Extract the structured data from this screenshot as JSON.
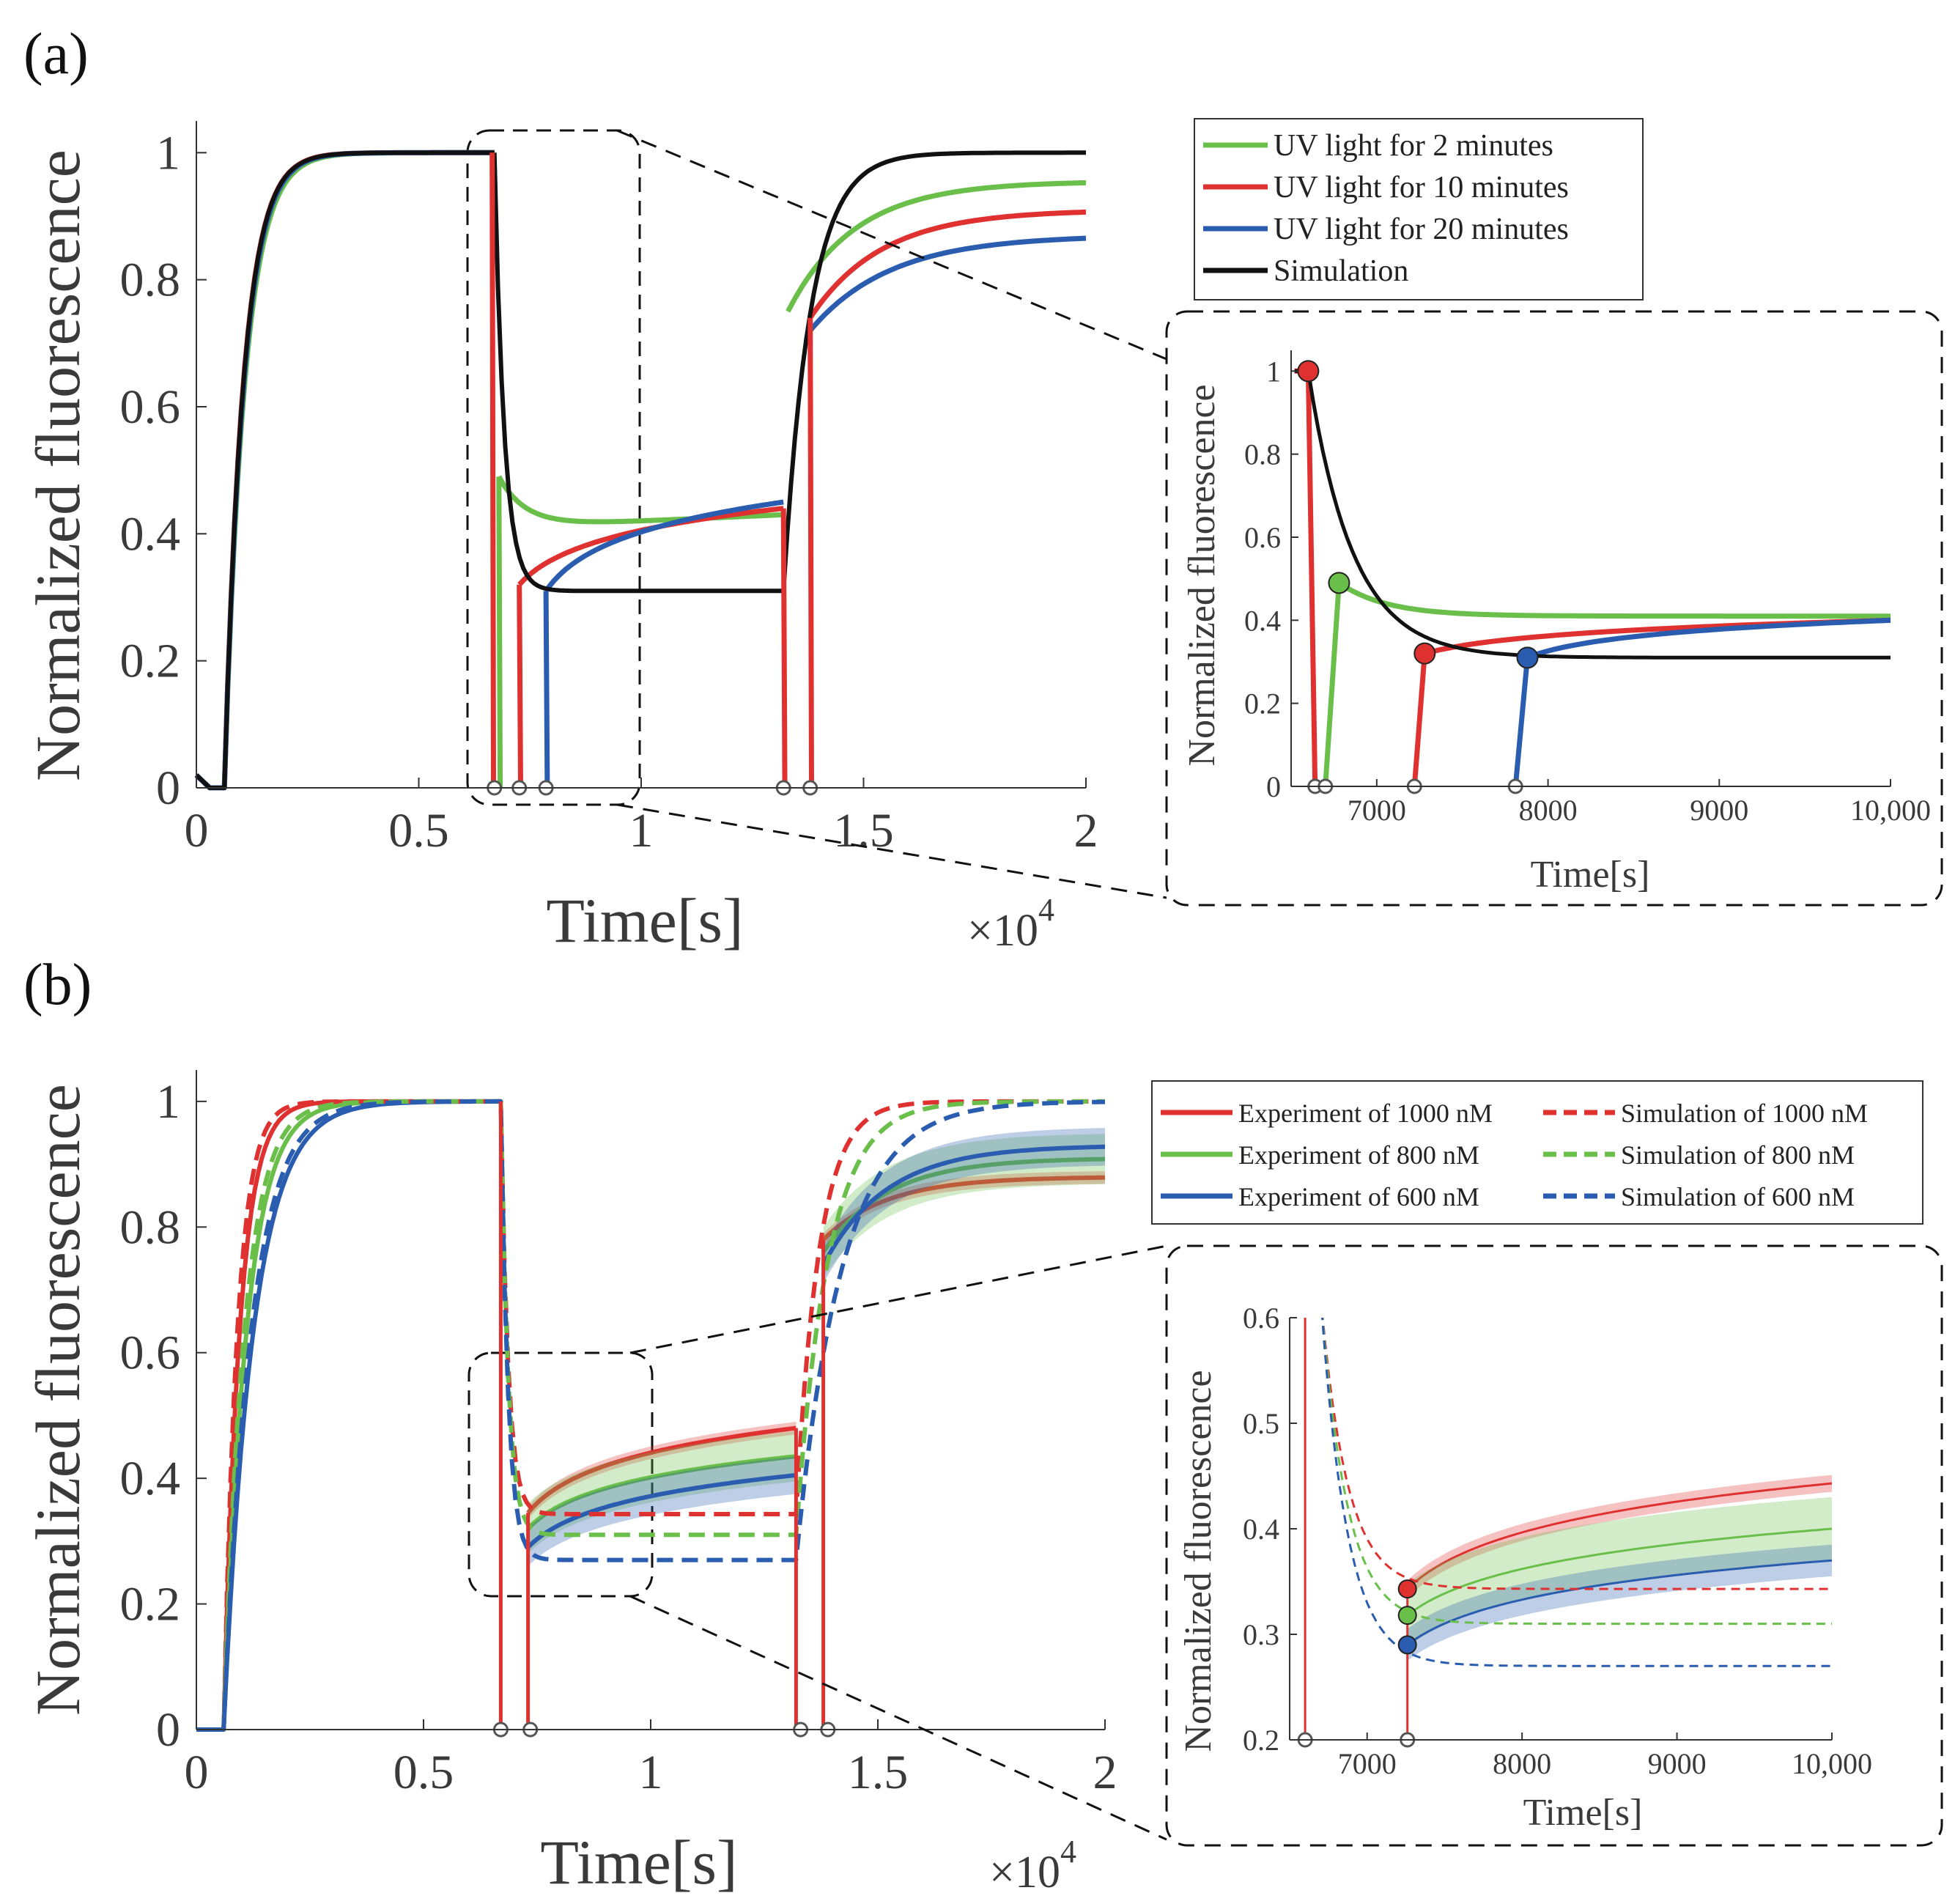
{
  "chart_data": [
    {
      "id": "a-main",
      "panel_label": "(a)",
      "type": "line",
      "xlabel": "Time[s]",
      "ylabel": "Normalized fluorescence",
      "xlim": [
        0,
        20000
      ],
      "ylim": [
        0,
        1.05
      ],
      "x_ticks": [
        0,
        5000,
        10000,
        15000,
        20000
      ],
      "x_tick_labels": [
        "0",
        "0.5",
        "1",
        "1.5",
        "2"
      ],
      "y_ticks": [
        0,
        0.2,
        0.4,
        0.6,
        0.8,
        1
      ],
      "y_tick_labels": [
        "0",
        "0.2",
        "0.4",
        "0.6",
        "0.8",
        "1"
      ],
      "x_multiplier": "×10",
      "x_multiplier_exp": "4",
      "legend_position": "top-right",
      "series": [
        {
          "name": "UV light for 2 minutes",
          "color": "#6abf4b",
          "phases": [
            {
              "x0": 630,
              "x1": 6700,
              "y0": 0,
              "y1": 1.0,
              "tau": 450,
              "dip": 6650
            },
            {
              "x0": 6800,
              "x1": 13200,
              "y0": 0.49,
              "y1": 0.41,
              "tau": 600,
              "trend": 0.02
            },
            {
              "x0": 13300,
              "x1": 20000,
              "y0": 0.75,
              "y1": 0.955,
              "tau": 1500
            }
          ]
        },
        {
          "name": "UV light for 10 minutes",
          "color": "#e03131",
          "phases": [
            {
              "x0": 630,
              "x1": 6700,
              "y0": 0,
              "y1": 1.0,
              "tau": 420,
              "dip": 6650
            },
            {
              "x0": 7260,
              "x1": 13200,
              "y0": 0.32,
              "y1": 0.44,
              "tau": 0,
              "shape": "log"
            },
            {
              "x0": 13800,
              "x1": 20000,
              "y0": 0.74,
              "y1": 0.91,
              "tau": 1600
            }
          ]
        },
        {
          "name": "UV light for 20 minutes",
          "color": "#2a5db0",
          "phases": [
            {
              "x0": 630,
              "x1": 6700,
              "y0": 0,
              "y1": 1.0,
              "tau": 430
            },
            {
              "x0": 7860,
              "x1": 13200,
              "y0": 0.31,
              "y1": 0.45,
              "tau": 0,
              "shape": "log"
            },
            {
              "x0": 13800,
              "x1": 20000,
              "y0": 0.72,
              "y1": 0.87,
              "tau": 1800
            }
          ]
        },
        {
          "name": "Simulation",
          "color": "#111111",
          "phases": [
            {
              "x0": 630,
              "x1": 6700,
              "y0": 0,
              "y1": 1.0,
              "tau": 420
            },
            {
              "x0": 6700,
              "x1": 13200,
              "y0": 1.0,
              "y1": 0.31,
              "tau": 220
            },
            {
              "x0": 13200,
              "x1": 20000,
              "y0": 0.31,
              "y1": 1.0,
              "tau": 600
            }
          ]
        }
      ],
      "drops": [
        {
          "color": "#e03131",
          "x": 6650,
          "from": 1.0
        },
        {
          "color": "#6abf4b",
          "x": 6800,
          "from": 0.49
        },
        {
          "color": "#e03131",
          "x": 7260,
          "from": 0.32
        },
        {
          "color": "#2a5db0",
          "x": 7860,
          "from": 0.31
        },
        {
          "color": "#e03131",
          "x": 13200,
          "from": 0.44
        },
        {
          "color": "#e03131",
          "x": 13800,
          "from": 0.74
        }
      ],
      "markers_x": [
        6700,
        7260,
        7860,
        13200,
        13800
      ],
      "zoom_box": {
        "x": [
          6200,
          10000
        ],
        "y": [
          0,
          1.05
        ]
      }
    },
    {
      "id": "a-inset",
      "type": "line",
      "xlabel": "Time[s]",
      "ylabel": "Normalized fluorescence",
      "xlim": [
        6500,
        10000
      ],
      "ylim": [
        0,
        1.05
      ],
      "x_ticks": [
        7000,
        8000,
        9000,
        10000
      ],
      "x_tick_labels": [
        "7000",
        "8000",
        "9000",
        "10,000"
      ],
      "y_ticks": [
        0,
        0.2,
        0.4,
        0.6,
        0.8,
        1
      ],
      "y_tick_labels": [
        "0",
        "0.2",
        "0.4",
        "0.6",
        "0.8",
        "1"
      ],
      "points": [
        {
          "color": "#e03131",
          "x": 6600,
          "y": 1.0
        },
        {
          "color": "#6abf4b",
          "x": 6780,
          "y": 0.49
        },
        {
          "color": "#e03131",
          "x": 7280,
          "y": 0.32
        },
        {
          "color": "#2a5db0",
          "x": 7880,
          "y": 0.31
        }
      ],
      "open_markers_x": [
        6640,
        6700,
        7220,
        7810
      ]
    },
    {
      "id": "b-main",
      "panel_label": "(b)",
      "type": "line",
      "xlabel": "Time[s]",
      "ylabel": "Normalized fluorescence",
      "xlim": [
        0,
        20000
      ],
      "ylim": [
        0,
        1.05
      ],
      "x_ticks": [
        0,
        5000,
        10000,
        15000,
        20000
      ],
      "x_tick_labels": [
        "0",
        "0.5",
        "1",
        "1.5",
        "2"
      ],
      "y_ticks": [
        0,
        0.2,
        0.4,
        0.6,
        0.8,
        1
      ],
      "y_tick_labels": [
        "0",
        "0.2",
        "0.4",
        "0.6",
        "0.8",
        "1"
      ],
      "x_multiplier": "×10",
      "x_multiplier_exp": "4",
      "legend_position": "top-right",
      "legend": [
        {
          "label": "Experiment of 1000 nM",
          "color": "#e03131",
          "dash": false
        },
        {
          "label": "Experiment of 800 nM",
          "color": "#6abf4b",
          "dash": false
        },
        {
          "label": "Experiment of 600 nM",
          "color": "#2a5db0",
          "dash": false
        },
        {
          "label": "Simulation of 1000 nM",
          "color": "#e03131",
          "dash": true
        },
        {
          "label": "Simulation of 800 nM",
          "color": "#6abf4b",
          "dash": true
        },
        {
          "label": "Simulation of 600 nM",
          "color": "#2a5db0",
          "dash": true
        }
      ],
      "experiments": [
        {
          "name": "1000 nM",
          "color": "#e03131",
          "rise_tau": 350,
          "second_start": 0.345,
          "second_end": 0.48,
          "third_start": 0.78,
          "third_end": 0.88,
          "band": 0.01
        },
        {
          "name": "800 nM",
          "color": "#6abf4b",
          "rise_tau": 500,
          "second_start": 0.32,
          "second_end": 0.435,
          "third_start": 0.76,
          "third_end": 0.91,
          "band": 0.04
        },
        {
          "name": "600 nM",
          "color": "#2a5db0",
          "rise_tau": 650,
          "second_start": 0.29,
          "second_end": 0.405,
          "third_start": 0.74,
          "third_end": 0.93,
          "band": 0.03
        }
      ],
      "simulations": [
        {
          "name": "1000 nM",
          "color": "#e03131",
          "rise_tau": 300,
          "floor": 0.343,
          "third_tau": 500
        },
        {
          "name": "800 nM",
          "color": "#6abf4b",
          "rise_tau": 450,
          "floor": 0.31,
          "third_tau": 700
        },
        {
          "name": "600 nM",
          "color": "#2a5db0",
          "rise_tau": 600,
          "floor": 0.27,
          "third_tau": 1000
        }
      ],
      "markers_x": [
        6700,
        7350,
        13300,
        13900
      ],
      "zoom_box": {
        "x": [
          6000,
          10000
        ],
        "y": [
          0.2,
          0.6
        ]
      }
    },
    {
      "id": "b-inset",
      "type": "line",
      "xlabel": "Time[s]",
      "ylabel": "Normalized fluorescence",
      "xlim": [
        6500,
        10000
      ],
      "ylim": [
        0.2,
        0.6
      ],
      "x_ticks": [
        7000,
        8000,
        9000,
        10000
      ],
      "x_tick_labels": [
        "7000",
        "8000",
        "9000",
        "10,000"
      ],
      "y_ticks": [
        0.2,
        0.3,
        0.4,
        0.5,
        0.6
      ],
      "y_tick_labels": [
        "0.2",
        "0.3",
        "0.4",
        "0.5",
        "0.6"
      ],
      "points": [
        {
          "color": "#e03131",
          "x": 7260,
          "y": 0.343
        },
        {
          "color": "#6abf4b",
          "x": 7260,
          "y": 0.318
        },
        {
          "color": "#2a5db0",
          "x": 7260,
          "y": 0.29
        }
      ],
      "open_markers_x": [
        6600,
        7260
      ]
    }
  ]
}
